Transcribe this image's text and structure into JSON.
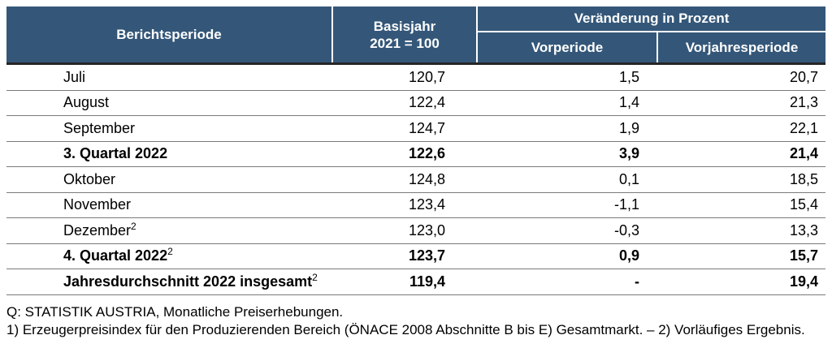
{
  "table": {
    "header": {
      "col1": "Berichtsperiode",
      "col2_line1": "Basisjahr",
      "col2_line2": "2021 = 100",
      "group": "Veränderung in Prozent",
      "col3": "Vorperiode",
      "col4": "Vorjahresperiode"
    },
    "rows": [
      {
        "label": "Juli",
        "sup": "",
        "bold": false,
        "basisjahr": "120,7",
        "vorperiode": "1,5",
        "vorjahresperiode": "20,7"
      },
      {
        "label": "August",
        "sup": "",
        "bold": false,
        "basisjahr": "122,4",
        "vorperiode": "1,4",
        "vorjahresperiode": "21,3"
      },
      {
        "label": "September",
        "sup": "",
        "bold": false,
        "basisjahr": "124,7",
        "vorperiode": "1,9",
        "vorjahresperiode": "22,1"
      },
      {
        "label": "3. Quartal 2022",
        "sup": "",
        "bold": true,
        "basisjahr": "122,6",
        "vorperiode": "3,9",
        "vorjahresperiode": "21,4"
      },
      {
        "label": "Oktober",
        "sup": "",
        "bold": false,
        "basisjahr": "124,8",
        "vorperiode": "0,1",
        "vorjahresperiode": "18,5"
      },
      {
        "label": "November",
        "sup": "",
        "bold": false,
        "basisjahr": "123,4",
        "vorperiode": "-1,1",
        "vorjahresperiode": "15,4"
      },
      {
        "label": "Dezember",
        "sup": "2",
        "bold": false,
        "basisjahr": "123,0",
        "vorperiode": "-0,3",
        "vorjahresperiode": "13,3"
      },
      {
        "label": "4. Quartal 2022",
        "sup": "2",
        "bold": true,
        "basisjahr": "123,7",
        "vorperiode": "0,9",
        "vorjahresperiode": "15,7"
      },
      {
        "label": "Jahresdurchschnitt 2022 insgesamt",
        "sup": "2",
        "bold": true,
        "basisjahr": "119,4",
        "vorperiode": "-",
        "vorjahresperiode": "19,4"
      }
    ],
    "footnotes": [
      "Q: STATISTIK AUSTRIA, Monatliche Preiserhebungen.",
      "1) Erzeugerpreisindex für den Produzierenden Bereich (ÖNACE 2008 Abschnitte B bis E) Gesamtmarkt. – 2) Vorläufiges Ergebnis."
    ],
    "colors": {
      "header_bg": "#345779",
      "header_text": "#ffffff",
      "row_line": "#7a7a7a",
      "header_border_bottom": "#262626"
    }
  }
}
